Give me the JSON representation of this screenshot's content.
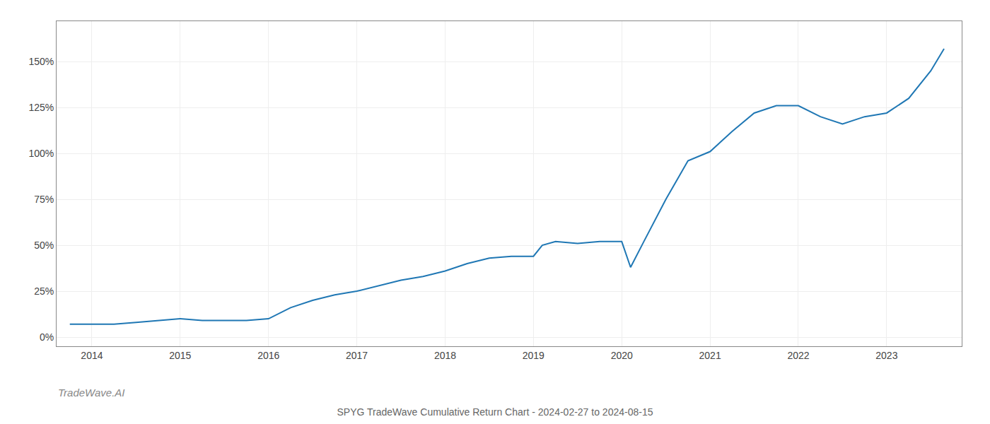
{
  "chart_data": {
    "type": "line",
    "title": "SPYG TradeWave Cumulative Return Chart - 2024-02-27 to 2024-08-15",
    "annotations": [
      "TradeWave.AI"
    ],
    "x": [
      2013.75,
      2014.0,
      2014.25,
      2014.5,
      2014.75,
      2015.0,
      2015.25,
      2015.5,
      2015.75,
      2016.0,
      2016.25,
      2016.5,
      2016.75,
      2017.0,
      2017.25,
      2017.5,
      2017.75,
      2018.0,
      2018.25,
      2018.5,
      2018.75,
      2019.0,
      2019.1,
      2019.25,
      2019.5,
      2019.75,
      2020.0,
      2020.1,
      2020.25,
      2020.5,
      2020.75,
      2021.0,
      2021.25,
      2021.5,
      2021.75,
      2022.0,
      2022.25,
      2022.5,
      2022.75,
      2023.0,
      2023.25,
      2023.5,
      2023.65
    ],
    "values": [
      0.07,
      0.07,
      0.07,
      0.08,
      0.09,
      0.1,
      0.09,
      0.09,
      0.09,
      0.1,
      0.16,
      0.2,
      0.23,
      0.25,
      0.28,
      0.31,
      0.33,
      0.36,
      0.4,
      0.43,
      0.44,
      0.44,
      0.5,
      0.52,
      0.51,
      0.52,
      0.52,
      0.38,
      0.52,
      0.75,
      0.96,
      1.01,
      1.12,
      1.22,
      1.26,
      1.26,
      1.2,
      1.16,
      1.2,
      1.22,
      1.3,
      1.45,
      1.57
    ],
    "color": "#1f77b4",
    "xlim": [
      2013.6,
      2023.85
    ],
    "xticks": [
      2014,
      2015,
      2016,
      2017,
      2018,
      2019,
      2020,
      2021,
      2022,
      2023
    ],
    "ylim": [
      -0.05,
      1.72
    ],
    "yticks": [
      {
        "value": 0.0,
        "label": "0%"
      },
      {
        "value": 0.25,
        "label": "25%"
      },
      {
        "value": 0.5,
        "label": "50%"
      },
      {
        "value": 0.75,
        "label": "75%"
      },
      {
        "value": 1.0,
        "label": "100%"
      },
      {
        "value": 1.25,
        "label": "125%"
      },
      {
        "value": 1.5,
        "label": "150%"
      }
    ],
    "grid": true
  }
}
